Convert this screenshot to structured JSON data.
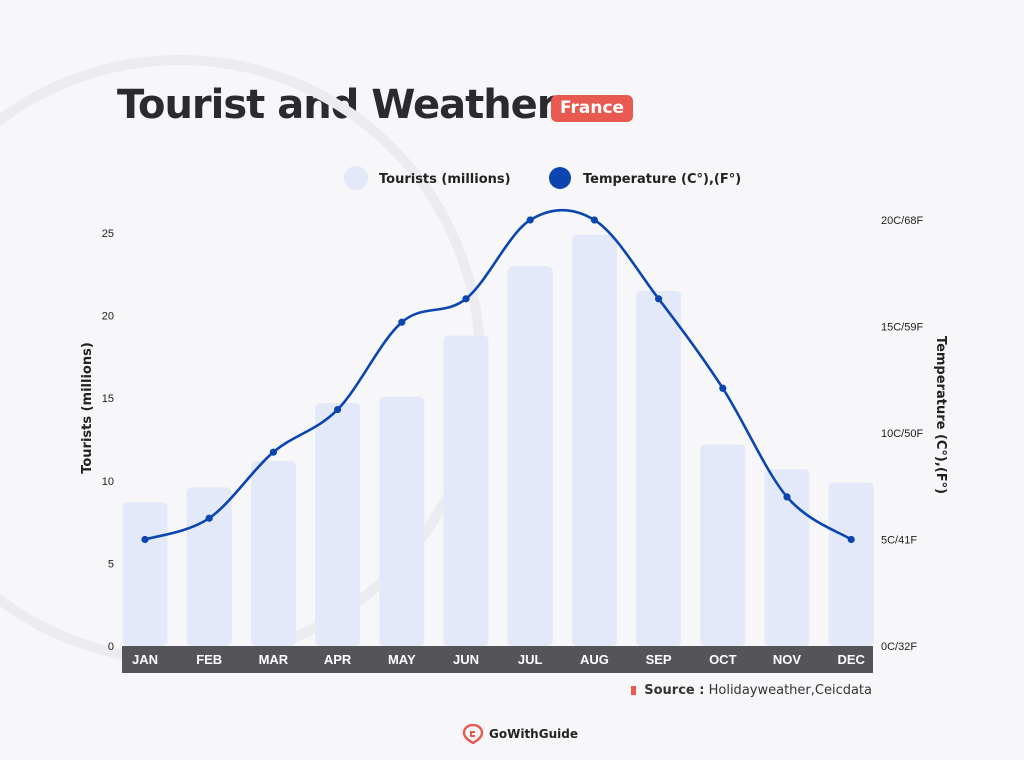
{
  "header": {
    "title": "Tourist and Weather",
    "badge": "France"
  },
  "footer": {
    "source_label": "Source :",
    "source_text": "Holidayweather,Ceicdata",
    "brand": "GoWithGuide"
  },
  "colors": {
    "bar": "#e3e9f8",
    "line": "#0b45b0",
    "axis_band": "#555459",
    "accent": "#e85a4f"
  },
  "chart_data": {
    "type": "bar",
    "categories": [
      "JAN",
      "FEB",
      "MAR",
      "APR",
      "MAY",
      "JUN",
      "JUL",
      "AUG",
      "SEP",
      "OCT",
      "NOV",
      "DEC"
    ],
    "series": [
      {
        "name": "Tourists (millions)",
        "type": "bar",
        "axis": "left",
        "values": [
          8.7,
          9.6,
          11.2,
          14.7,
          15.1,
          18.8,
          23.0,
          24.9,
          21.5,
          12.2,
          10.7,
          9.9
        ]
      },
      {
        "name": "Temperature (C°),(F°)",
        "type": "line",
        "axis": "right",
        "values": [
          5.0,
          6.0,
          9.1,
          11.1,
          15.2,
          16.3,
          20.0,
          20.0,
          16.3,
          12.1,
          7.0,
          5.0
        ]
      }
    ],
    "ylabel": "Tourists (millions)",
    "ylim": [
      0,
      27
    ],
    "yticks": [
      "0",
      "5",
      "10",
      "15",
      "20",
      "25"
    ],
    "y2label": "Temperature (C°),(F°)",
    "y2lim": [
      0,
      20
    ],
    "y2ticks": [
      "0C/32F",
      "5C/41F",
      "10C/50F",
      "15C/59F",
      "20C/68F"
    ],
    "legend": "top-center",
    "grid": false
  }
}
